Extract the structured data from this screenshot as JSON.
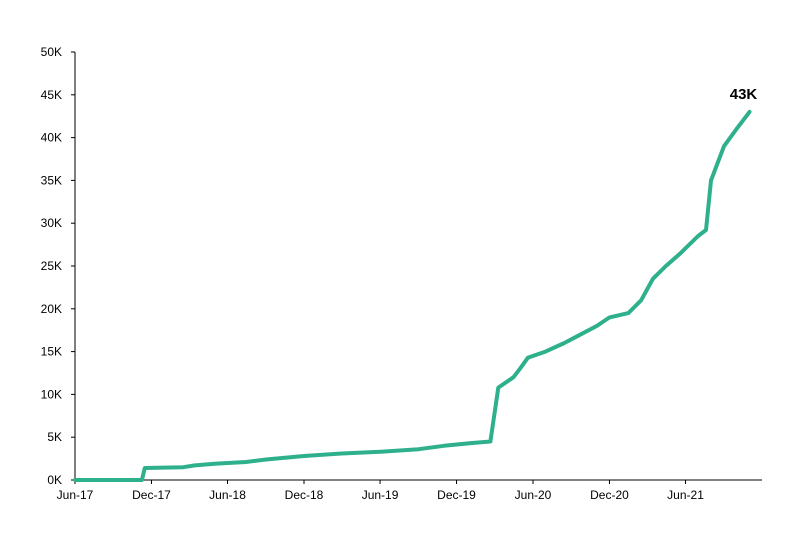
{
  "chart_data": {
    "type": "line",
    "title": "",
    "xlabel": "",
    "ylabel": "",
    "ylim": [
      0,
      50000
    ],
    "y_ticks": [
      0,
      5000,
      10000,
      15000,
      20000,
      25000,
      30000,
      35000,
      40000,
      45000,
      50000
    ],
    "y_tick_labels": [
      "0K",
      "5K",
      "10K",
      "15K",
      "20K",
      "25K",
      "30K",
      "35K",
      "40K",
      "45K",
      "50K"
    ],
    "x_ticks": [
      "2017-06",
      "2017-12",
      "2018-06",
      "2018-12",
      "2019-06",
      "2019-12",
      "2020-06",
      "2020-12",
      "2021-06"
    ],
    "x_tick_labels": [
      "Jun-17",
      "Dec-17",
      "Jun-18",
      "Dec-18",
      "Jun-19",
      "Dec-19",
      "Jun-20",
      "Dec-20",
      "Jun-21"
    ],
    "grid": false,
    "legend": "none",
    "end_label": "43K",
    "colors": {
      "line": "#2eb08c",
      "axis": "#000000"
    },
    "series": [
      {
        "values": [
          [
            "2017-06",
            0
          ],
          [
            "2017-11-08",
            0
          ],
          [
            "2017-11-15",
            1400
          ],
          [
            "2018-02-15",
            1500
          ],
          [
            "2018-03-15",
            1700
          ],
          [
            "2018-05-01",
            1900
          ],
          [
            "2018-07-15",
            2100
          ],
          [
            "2018-09-01",
            2400
          ],
          [
            "2018-12-01",
            2800
          ],
          [
            "2019-03-01",
            3100
          ],
          [
            "2019-06-01",
            3300
          ],
          [
            "2019-09-01",
            3600
          ],
          [
            "2019-11-01",
            4000
          ],
          [
            "2020-01-01",
            4300
          ],
          [
            "2020-02-20",
            4500
          ],
          [
            "2020-03-10",
            10800
          ],
          [
            "2020-04-15",
            12000
          ],
          [
            "2020-05-01",
            13000
          ],
          [
            "2020-05-20",
            14300
          ],
          [
            "2020-07-01",
            15000
          ],
          [
            "2020-08-15",
            16000
          ],
          [
            "2020-09-15",
            16800
          ],
          [
            "2020-11-01",
            18000
          ],
          [
            "2020-12-01",
            19000
          ],
          [
            "2021-01-15",
            19500
          ],
          [
            "2021-02-15",
            21000
          ],
          [
            "2021-03-15",
            23500
          ],
          [
            "2021-04-15",
            25000
          ],
          [
            "2021-05-20",
            26500
          ],
          [
            "2021-07-01",
            28500
          ],
          [
            "2021-07-20",
            29200
          ],
          [
            "2021-08-01",
            35000
          ],
          [
            "2021-09-01",
            39000
          ],
          [
            "2021-10-01",
            41000
          ],
          [
            "2021-11-01",
            43000
          ]
        ]
      }
    ]
  }
}
